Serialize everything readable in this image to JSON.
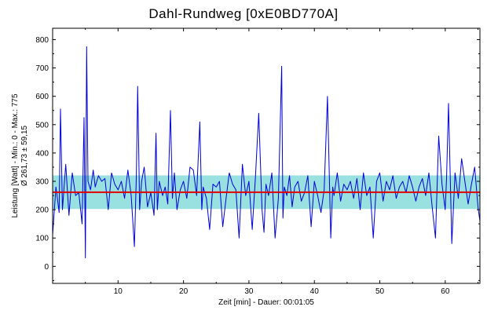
{
  "chart_data": {
    "type": "line",
    "title": "Dahl-Rundweg [0xE0BD770A]",
    "xlabel": "Zeit [min] - Dauer: 00:01:05",
    "ylabel_line1": "Leistung [Watt] - Min.: 0 - Max.: 775",
    "ylabel_line2": "Ø 261,73 ± 59,15",
    "xlim": [
      0,
      65.3
    ],
    "ylim": [
      -60,
      840
    ],
    "x_ticks": [
      10,
      20,
      30,
      40,
      50,
      60
    ],
    "y_ticks": [
      0,
      100,
      200,
      300,
      400,
      500,
      600,
      700,
      800
    ],
    "mean": 261.73,
    "std": 59.15,
    "grid": false,
    "colors": {
      "series": "#0000dd",
      "mean_line": "#e00000",
      "band": "#7fd8d8"
    },
    "series": [
      {
        "x": [
          0,
          0.5,
          1.0,
          1.2,
          1.5,
          2.0,
          2.5,
          3.0,
          3.5,
          4.0,
          4.5,
          4.8,
          5.0,
          5.2,
          5.4,
          5.8,
          6.2,
          6.5,
          7.0,
          7.5,
          8.0,
          8.5,
          9.0,
          9.5,
          10.0,
          10.5,
          11.0,
          11.5,
          12.0,
          12.5,
          12.8,
          13.0,
          13.3,
          13.6,
          14.0,
          14.5,
          15.0,
          15.5,
          15.8,
          16.0,
          16.3,
          16.8,
          17.2,
          17.6,
          18.0,
          18.3,
          18.6,
          19.0,
          19.5,
          20.0,
          20.5,
          21.0,
          21.5,
          22.0,
          22.5,
          22.8,
          23.0,
          23.5,
          24.0,
          24.5,
          25.0,
          25.5,
          26.0,
          26.5,
          27.0,
          27.5,
          28.0,
          28.5,
          29.0,
          29.5,
          30.0,
          30.5,
          31.0,
          31.5,
          32.0,
          32.3,
          32.6,
          33.0,
          33.5,
          34.0,
          34.5,
          35.0,
          35.2,
          35.4,
          35.8,
          36.2,
          36.6,
          37.0,
          37.5,
          38.0,
          38.5,
          39.0,
          39.5,
          40.0,
          40.5,
          41.0,
          41.5,
          42.0,
          42.5,
          42.8,
          43.0,
          43.5,
          44.0,
          44.5,
          45.0,
          45.5,
          46.0,
          46.5,
          47.0,
          47.5,
          48.0,
          48.5,
          49.0,
          49.5,
          50.0,
          50.5,
          51.0,
          51.5,
          52.0,
          52.5,
          53.0,
          53.5,
          54.0,
          54.5,
          55.0,
          55.5,
          56.0,
          56.5,
          57.0,
          57.5,
          58.0,
          58.5,
          59.0,
          59.5,
          60.0,
          60.2,
          60.5,
          61.0,
          61.5,
          62.0,
          62.5,
          63.0,
          63.5,
          64.0,
          64.5,
          65.0,
          65.3
        ],
        "values": [
          110,
          280,
          190,
          555,
          200,
          360,
          180,
          330,
          250,
          260,
          150,
          525,
          30,
          775,
          300,
          270,
          340,
          280,
          320,
          300,
          310,
          200,
          330,
          290,
          270,
          300,
          240,
          340,
          250,
          70,
          320,
          635,
          200,
          300,
          350,
          210,
          260,
          180,
          470,
          200,
          300,
          250,
          280,
          220,
          550,
          240,
          330,
          200,
          270,
          300,
          240,
          350,
          340,
          250,
          510,
          200,
          280,
          240,
          130,
          290,
          280,
          300,
          140,
          240,
          330,
          290,
          270,
          100,
          360,
          250,
          300,
          130,
          320,
          540,
          200,
          120,
          290,
          250,
          330,
          100,
          240,
          706,
          170,
          280,
          250,
          320,
          210,
          280,
          300,
          230,
          260,
          320,
          140,
          300,
          250,
          190,
          270,
          600,
          100,
          280,
          250,
          330,
          230,
          290,
          270,
          300,
          240,
          310,
          200,
          330,
          250,
          280,
          100,
          300,
          330,
          230,
          300,
          270,
          320,
          240,
          280,
          300,
          260,
          320,
          280,
          230,
          280,
          310,
          250,
          330,
          210,
          100,
          460,
          290,
          200,
          310,
          575,
          80,
          330,
          240,
          380,
          300,
          220,
          290,
          350,
          210,
          160
        ]
      }
    ]
  }
}
